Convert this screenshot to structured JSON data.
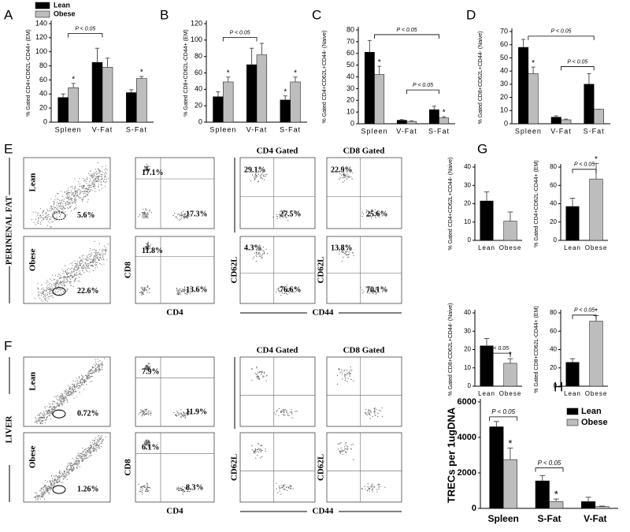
{
  "chart_data": [
    {
      "type": "bar",
      "panel": "A",
      "y_label": "% Gated CD4+CD62L-CD44+ (EM)",
      "categories": [
        "Spleen",
        "V-Fat",
        "S-Fat"
      ],
      "series": [
        {
          "name": "Lean",
          "color": "#000000",
          "values": [
            35,
            85,
            42
          ],
          "errors": [
            5,
            20,
            4
          ]
        },
        {
          "name": "Obese",
          "color": "#bdbdbd",
          "values": [
            49,
            78,
            62
          ],
          "errors": [
            6,
            13,
            3
          ]
        }
      ],
      "ylim": [
        0,
        140
      ],
      "yticks": [
        0,
        20,
        40,
        60,
        80,
        100,
        120,
        140
      ],
      "annotations": [
        "*",
        "*",
        "P < 0.05"
      ]
    },
    {
      "type": "bar",
      "panel": "B",
      "y_label": "% Gated CD8+CD62L-CD44+ (EM)",
      "categories": [
        "Spleen",
        "V-Fat",
        "S-Fat"
      ],
      "series": [
        {
          "color": "#000000",
          "values": [
            31,
            70,
            27
          ],
          "errors": [
            6,
            20,
            5
          ]
        },
        {
          "color": "#bdbdbd",
          "values": [
            49,
            82,
            49
          ],
          "errors": [
            6,
            14,
            6
          ]
        }
      ],
      "ylim": [
        0,
        120
      ],
      "yticks": [
        0,
        20,
        40,
        60,
        80,
        100,
        120
      ],
      "annotations": [
        "P < 0.05",
        "*",
        "*",
        "*"
      ]
    },
    {
      "type": "bar",
      "panel": "C",
      "y_label": "% Gated CD4+CD62L+CD44- (Naive)",
      "categories": [
        "Spleen",
        "V-Fat",
        "S-Fat"
      ],
      "series": [
        {
          "color": "#000000",
          "values": [
            61,
            3,
            12
          ],
          "errors": [
            10,
            0.5,
            3
          ]
        },
        {
          "color": "#bdbdbd",
          "values": [
            42,
            2,
            5
          ],
          "errors": [
            7,
            0.5,
            1
          ]
        }
      ],
      "ylim": [
        0,
        80
      ],
      "yticks": [
        0,
        10,
        20,
        30,
        40,
        50,
        60,
        70,
        80
      ],
      "annotations": [
        "P < 0.05",
        "*",
        "P < 0.05",
        "*"
      ]
    },
    {
      "type": "bar",
      "panel": "D",
      "y_label": "% Gated CD8+CD62L+CD44- (Naive)",
      "categories": [
        "Spleen",
        "V-Fat",
        "S-Fat"
      ],
      "series": [
        {
          "color": "#000000",
          "values": [
            58,
            5,
            30
          ],
          "errors": [
            6,
            1,
            8
          ]
        },
        {
          "color": "#bdbdbd",
          "values": [
            38,
            3,
            11
          ],
          "errors": [
            5,
            0.5,
            0
          ]
        }
      ],
      "ylim": [
        0,
        70
      ],
      "yticks": [
        0,
        10,
        20,
        30,
        40,
        50,
        60,
        70
      ],
      "annotations": [
        "P < 0.05",
        "*",
        "P < 0.05"
      ]
    },
    {
      "type": "bar",
      "panel": "G",
      "y_label": "% Gated CD4+CD62L+CD44- (Naive)",
      "categories": [
        "Lean",
        "Obese"
      ],
      "values": [
        21.5,
        10.5
      ],
      "errors": [
        5,
        5
      ],
      "colors": [
        "#000000",
        "#bdbdbd"
      ],
      "ylim": [
        0,
        40
      ],
      "yticks": [
        0,
        10,
        20,
        30,
        40
      ]
    },
    {
      "type": "bar",
      "y_label": "% Gated CD4+CD62L-CD44+ (EM)",
      "categories": [
        "Lean",
        "Obese"
      ],
      "values": [
        37,
        67
      ],
      "errors": [
        9,
        17
      ],
      "colors": [
        "#000000",
        "#bdbdbd"
      ],
      "ylim": [
        0,
        80
      ],
      "yticks": [
        0,
        20,
        40,
        60,
        80
      ],
      "annotations": [
        "P < 0.05",
        "*"
      ]
    },
    {
      "type": "bar",
      "y_label": "% Gated CD8+CD62L+CD44- (Naive)",
      "categories": [
        "Lean",
        "Obese"
      ],
      "values": [
        22,
        12.5
      ],
      "errors": [
        4,
        2.5
      ],
      "colors": [
        "#000000",
        "#bdbdbd"
      ],
      "ylim": [
        0,
        40
      ],
      "yticks": [
        0,
        10,
        20,
        30,
        40
      ],
      "annotations": [
        "P < 0.05",
        "*"
      ]
    },
    {
      "type": "bar",
      "y_label": "% Gated CD8+CD62L-CD44+ (EM)",
      "categories": [
        "Lean",
        "Obese"
      ],
      "values": [
        26,
        71
      ],
      "errors": [
        4,
        6
      ],
      "colors": [
        "#000000",
        "#bdbdbd"
      ],
      "ylim": [
        0,
        80
      ],
      "yticks": [
        0,
        20,
        40,
        60,
        80
      ],
      "annotations": [
        "P < 0.05",
        "*"
      ]
    },
    {
      "type": "bar",
      "panel": "H",
      "y_label": "TRECs per 1ugDNA",
      "categories": [
        "Spleen",
        "S-Fat",
        "V-Fat"
      ],
      "series": [
        {
          "name": "Lean",
          "color": "#000000",
          "values": [
            4600,
            1550,
            380
          ],
          "errors": [
            300,
            300,
            250
          ]
        },
        {
          "name": "Obese",
          "color": "#bdbdbd",
          "values": [
            2750,
            380,
            100
          ],
          "errors": [
            650,
            150,
            30
          ]
        }
      ],
      "ylim": [
        0,
        6000
      ],
      "yticks": [
        0,
        2000,
        4000,
        6000
      ],
      "annotations": [
        "P < 0.05",
        "*",
        "P < 0.05",
        "*"
      ]
    }
  ],
  "flow": {
    "E": {
      "panel": "E",
      "tissue": "PERINENAL FAT",
      "cd4_gated_title": "CD4 Gated",
      "cd8_gated_title": "CD8 Gated",
      "x_cd4": "CD4",
      "y_cd8": "CD8",
      "x_cd44": "CD44",
      "y_cd62l": "CD62L",
      "rows": [
        {
          "group": "Lean",
          "gate": "5.6%",
          "cd8": "17.1%",
          "cd4": "17.3%",
          "cd4_gated": [
            "29.1%",
            "27.5%"
          ],
          "cd8_gated": [
            "22.9%",
            "25.6%"
          ]
        },
        {
          "group": "Obese",
          "gate": "22.6%",
          "cd8": "11.8%",
          "cd4": "13.6%",
          "cd4_gated": [
            "4.3%",
            "76.6%"
          ],
          "cd8_gated": [
            "13.8%",
            "70.1%"
          ]
        }
      ]
    },
    "F": {
      "panel": "F",
      "tissue": "LIVER",
      "cd4_gated_title": "CD4 Gated",
      "cd8_gated_title": "CD8 Gated",
      "x_cd4": "CD4",
      "y_cd8": "CD8",
      "x_cd44": "CD44",
      "y_cd62l": "CD62L",
      "rows": [
        {
          "group": "Lean",
          "gate": "0.72%",
          "cd8": "7.9%",
          "cd4": "11.9%",
          "cd4_gated": [],
          "cd8_gated": []
        },
        {
          "group": "Obese",
          "gate": "1.26%",
          "cd8": "6.1%",
          "cd4": "8.3%",
          "cd4_gated": [],
          "cd8_gated": []
        }
      ]
    }
  }
}
